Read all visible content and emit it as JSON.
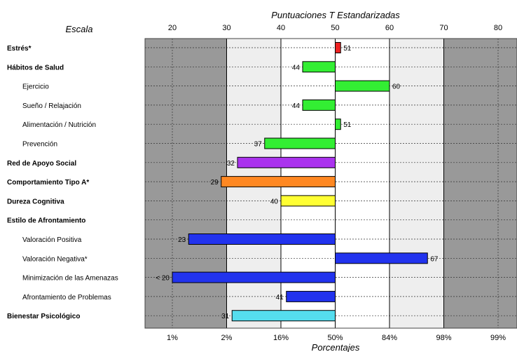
{
  "chart_data": {
    "type": "bar",
    "title": "Puntuaciones T Estandarizadas",
    "xlabel": "Porcentajes",
    "scale_header": "Escala",
    "baseline": 50,
    "xlim": [
      20,
      80
    ],
    "top_ticks": [
      "20",
      "30",
      "40",
      "50",
      "60",
      "70",
      "80"
    ],
    "bottom_ticks": [
      "1%",
      "2%",
      "16%",
      "50%",
      "84%",
      "98%",
      "99%"
    ],
    "categories": [
      "Estrés*",
      "Hábitos de Salud",
      "Ejercicio",
      "Sueño / Relajación",
      "Alimentación / Nutrición",
      "Prevención",
      "Red de Apoyo Social",
      "Comportamiento Tipo A*",
      "Dureza Cognitiva",
      "Estilo de Afrontamiento",
      "Valoración Positiva",
      "Valoración Negativa*",
      "Minimización de las Amenazas",
      "Afrontamiento de Problemas",
      "Bienestar Psicológico"
    ],
    "bold": [
      true,
      true,
      false,
      false,
      false,
      false,
      true,
      true,
      true,
      true,
      false,
      false,
      false,
      false,
      true
    ],
    "values": [
      51,
      44,
      60,
      44,
      51,
      37,
      32,
      29,
      40,
      null,
      23,
      67,
      20,
      41,
      31
    ],
    "value_labels": [
      "51",
      "44",
      "60",
      "44",
      "51",
      "37",
      "32",
      "29",
      "40",
      "",
      "23",
      "67",
      "< 20",
      "41",
      "31"
    ],
    "colors": [
      "#ee2222",
      "#33ee33",
      "#33ee33",
      "#33ee33",
      "#33ee33",
      "#33ee33",
      "#aa33ee",
      "#ff8822",
      "#ffff33",
      null,
      "#2233ee",
      "#2233ee",
      "#2233ee",
      "#2233ee",
      "#55ddee"
    ],
    "band_colors": {
      "outer": "#999999",
      "middle": "#eeeeee",
      "center": "#ffffff"
    },
    "grid": true
  }
}
